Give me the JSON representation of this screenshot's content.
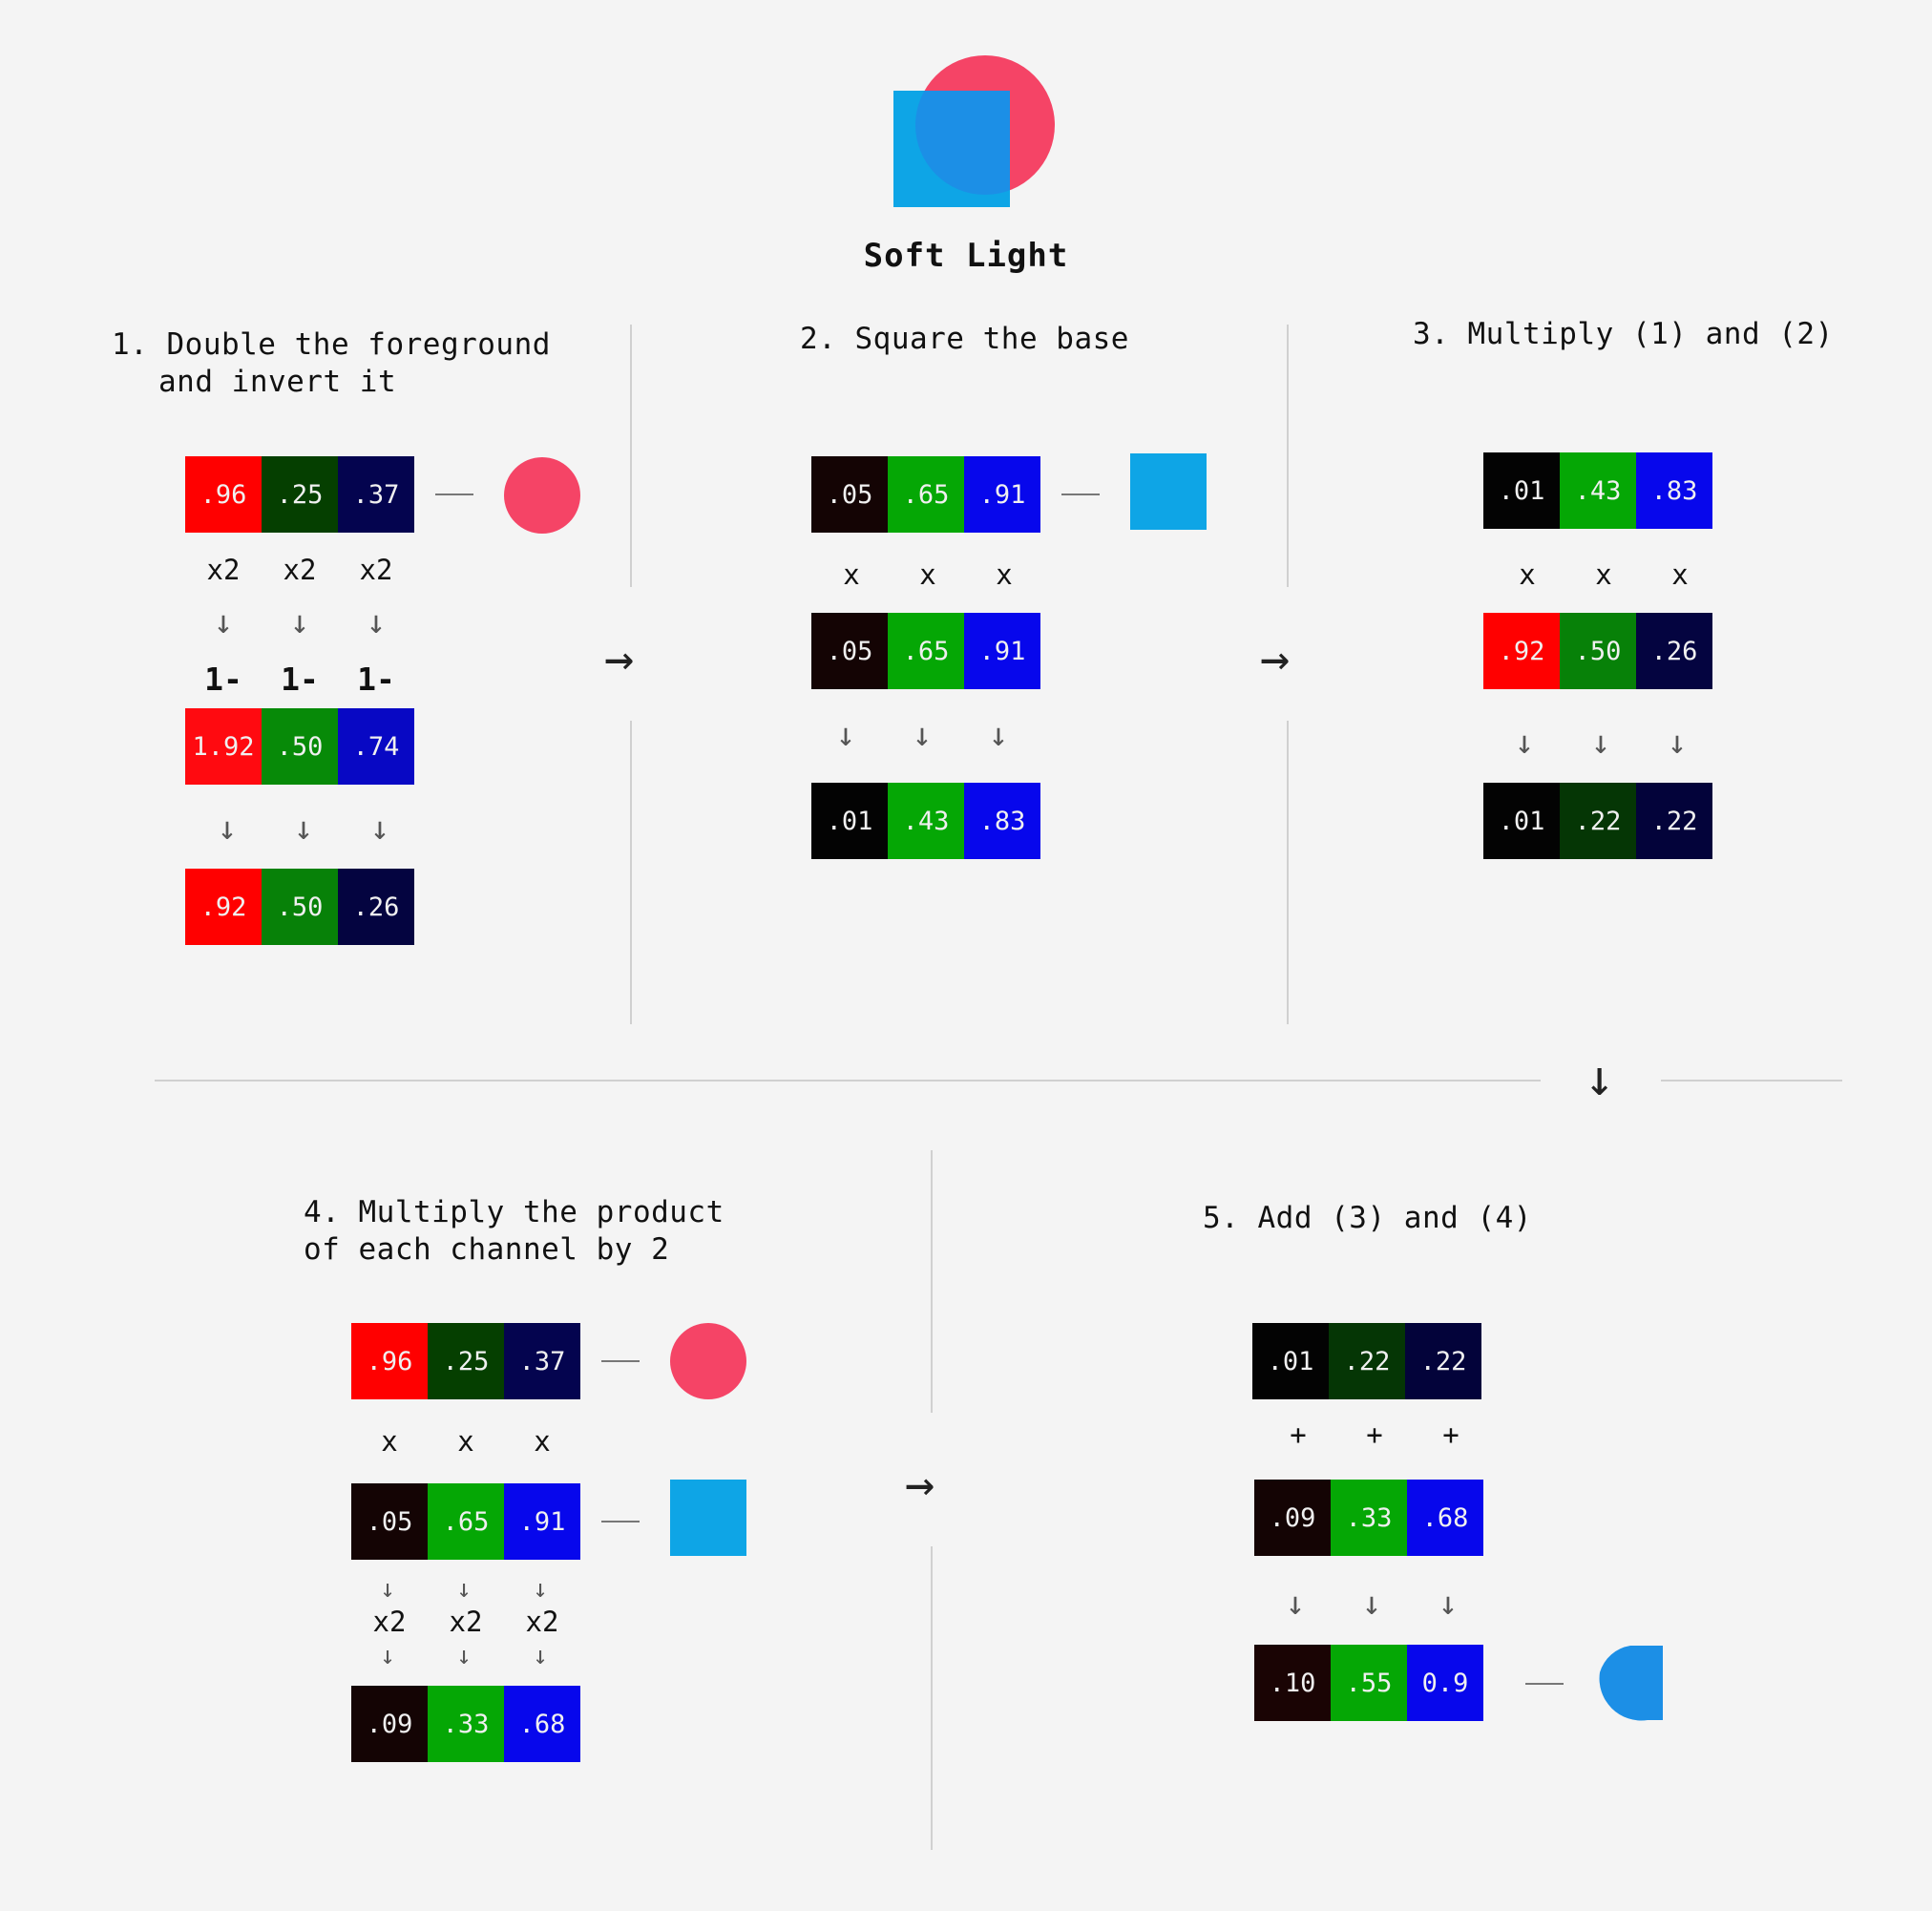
{
  "title": "Soft Light",
  "colors": {
    "red_circle": "#f54466",
    "blue_square": "#0ea5e6",
    "overlap": "#1c8fe6",
    "result_shape": "#1c8fe6"
  },
  "step1": {
    "line1": "1. Double the foreground",
    "line2": "and invert it",
    "top": [
      {
        "v": ".96",
        "c": "#ff0000"
      },
      {
        "v": ".25",
        "c": "#053f00"
      },
      {
        "v": ".37",
        "c": "#04044f"
      }
    ],
    "ops": [
      "x2",
      "x2",
      "x2"
    ],
    "inv": [
      "1-",
      "1-",
      "1-"
    ],
    "mid": [
      {
        "v": "1.92",
        "c": "#ff0a10"
      },
      {
        "v": ".50",
        "c": "#078a08"
      },
      {
        "v": ".74",
        "c": "#0808c4"
      }
    ],
    "bottom": [
      {
        "v": ".92",
        "c": "#ff0000"
      },
      {
        "v": ".50",
        "c": "#078108"
      },
      {
        "v": ".26",
        "c": "#040440"
      }
    ]
  },
  "step2": {
    "line1": "2. Square the base",
    "top": [
      {
        "v": ".05",
        "c": "#140404"
      },
      {
        "v": ".65",
        "c": "#05a705"
      },
      {
        "v": ".91",
        "c": "#0707ec"
      }
    ],
    "ops": [
      "x",
      "x",
      "x"
    ],
    "mid": [
      {
        "v": ".05",
        "c": "#140404"
      },
      {
        "v": ".65",
        "c": "#05a705"
      },
      {
        "v": ".91",
        "c": "#0707ec"
      }
    ],
    "bottom": [
      {
        "v": ".01",
        "c": "#030303"
      },
      {
        "v": ".43",
        "c": "#05a705"
      },
      {
        "v": ".83",
        "c": "#0707ec"
      }
    ]
  },
  "step3": {
    "line1": "3. Multiply (1) and (2)",
    "top": [
      {
        "v": ".01",
        "c": "#030303"
      },
      {
        "v": ".43",
        "c": "#05a705"
      },
      {
        "v": ".83",
        "c": "#0707ec"
      }
    ],
    "ops": [
      "x",
      "x",
      "x"
    ],
    "mid": [
      {
        "v": ".92",
        "c": "#ff0000"
      },
      {
        "v": ".50",
        "c": "#078108"
      },
      {
        "v": ".26",
        "c": "#040440"
      }
    ],
    "bottom": [
      {
        "v": ".01",
        "c": "#030303"
      },
      {
        "v": ".22",
        "c": "#053605"
      },
      {
        "v": ".22",
        "c": "#03033a"
      }
    ]
  },
  "step4": {
    "line1": "4. Multiply the product",
    "line2": "of each channel by 2",
    "top": [
      {
        "v": ".96",
        "c": "#ff0000"
      },
      {
        "v": ".25",
        "c": "#053f00"
      },
      {
        "v": ".37",
        "c": "#04044f"
      }
    ],
    "ops": [
      "x",
      "x",
      "x"
    ],
    "mid": [
      {
        "v": ".05",
        "c": "#140404"
      },
      {
        "v": ".65",
        "c": "#05a705"
      },
      {
        "v": ".91",
        "c": "#0707ec"
      }
    ],
    "ops2": [
      "x2",
      "x2",
      "x2"
    ],
    "bottom": [
      {
        "v": ".09",
        "c": "#140404"
      },
      {
        "v": ".33",
        "c": "#05a705"
      },
      {
        "v": ".68",
        "c": "#0707ec"
      }
    ]
  },
  "step5": {
    "line1": "5. Add (3) and (4)",
    "top": [
      {
        "v": ".01",
        "c": "#030303"
      },
      {
        "v": ".22",
        "c": "#053605"
      },
      {
        "v": ".22",
        "c": "#03033a"
      }
    ],
    "ops": [
      "+",
      "+",
      "+"
    ],
    "mid": [
      {
        "v": ".09",
        "c": "#140404"
      },
      {
        "v": ".33",
        "c": "#05a705"
      },
      {
        "v": ".68",
        "c": "#0707ec"
      }
    ],
    "bottom": [
      {
        "v": ".10",
        "c": "#1a0404"
      },
      {
        "v": ".55",
        "c": "#05a705"
      },
      {
        "v": "0.9",
        "c": "#0707ec"
      }
    ]
  },
  "arrow_right": "→",
  "arrow_down": "↓"
}
